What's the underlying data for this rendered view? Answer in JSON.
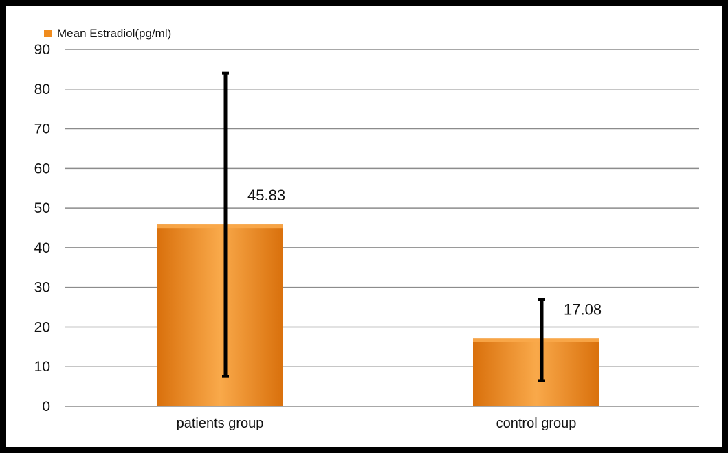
{
  "chart_data": {
    "type": "bar",
    "legend": {
      "label": "Mean Estradiol(pg/ml)",
      "position": "top-left"
    },
    "categories": [
      "patients group",
      "control group"
    ],
    "series": [
      {
        "name": "Mean Estradiol(pg/ml)",
        "values": [
          45.83,
          17.08
        ],
        "data_labels": [
          "45.83",
          "17.08"
        ],
        "error_low": [
          7.5,
          6.5
        ],
        "error_high": [
          84,
          27
        ]
      }
    ],
    "ylim": [
      0,
      90
    ],
    "yticks": [
      0,
      10,
      20,
      30,
      40,
      50,
      60,
      70,
      80,
      90
    ],
    "grid": true,
    "colors": {
      "bar": "#f08c1e",
      "bar_light": "#f9a94a",
      "bar_dark": "#d9700c",
      "error_bar": "#000000",
      "grid": "#8c8c8c"
    }
  }
}
